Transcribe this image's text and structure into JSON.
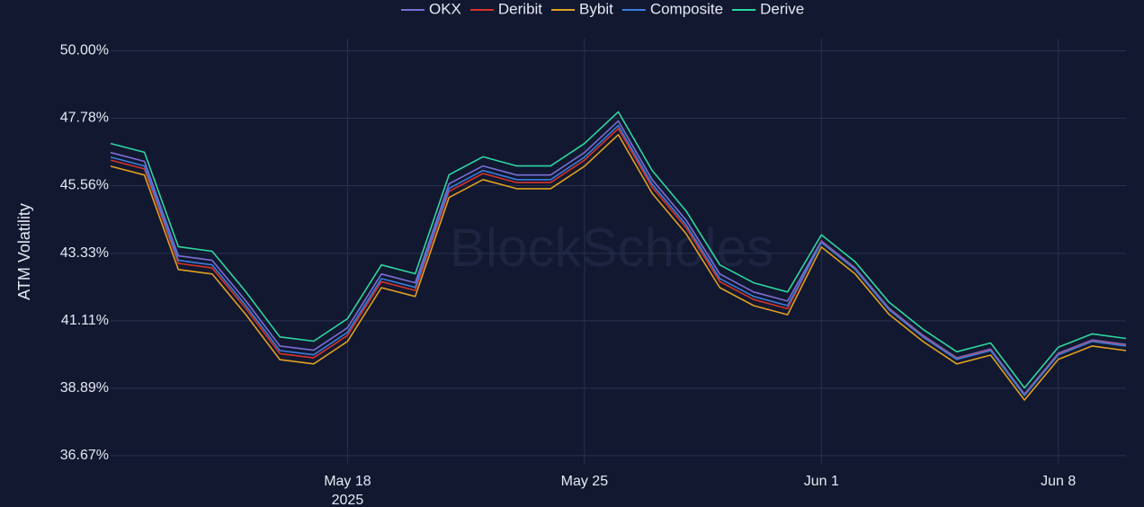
{
  "chart_data": {
    "type": "line",
    "y_label": "ATM Volatility",
    "watermark": "BlockScholes",
    "x": [
      "2025-05-11",
      "2025-05-12",
      "2025-05-13",
      "2025-05-14",
      "2025-05-15",
      "2025-05-16",
      "2025-05-17",
      "2025-05-18",
      "2025-05-19",
      "2025-05-20",
      "2025-05-21",
      "2025-05-22",
      "2025-05-23",
      "2025-05-24",
      "2025-05-25",
      "2025-05-26",
      "2025-05-27",
      "2025-05-28",
      "2025-05-29",
      "2025-05-30",
      "2025-05-31",
      "2025-06-01",
      "2025-06-02",
      "2025-06-03",
      "2025-06-04",
      "2025-06-05",
      "2025-06-06",
      "2025-06-07",
      "2025-06-08",
      "2025-06-09",
      "2025-06-10"
    ],
    "series": [
      {
        "name": "OKX",
        "color": "#7b6fd6",
        "values": [
          46.65,
          46.36,
          43.25,
          43.1,
          41.76,
          40.28,
          40.14,
          40.88,
          42.65,
          42.36,
          45.62,
          46.21,
          45.91,
          45.91,
          46.65,
          47.69,
          45.76,
          44.43,
          42.65,
          42.06,
          41.76,
          43.74,
          42.85,
          41.52,
          40.63,
          39.89,
          40.18,
          38.7,
          40.04,
          40.48,
          40.33
        ]
      },
      {
        "name": "Deribit",
        "color": "#d6342a",
        "values": [
          46.4,
          46.11,
          43.0,
          42.85,
          41.51,
          40.03,
          39.89,
          40.63,
          42.4,
          42.11,
          45.37,
          45.96,
          45.66,
          45.66,
          46.4,
          47.44,
          45.51,
          44.18,
          42.4,
          41.81,
          41.51,
          43.71,
          42.82,
          41.49,
          40.6,
          39.86,
          40.15,
          38.67,
          40.01,
          40.45,
          40.3
        ]
      },
      {
        "name": "Bybit",
        "color": "#e0a020",
        "values": [
          46.2,
          45.91,
          42.8,
          42.65,
          41.31,
          39.83,
          39.69,
          40.43,
          42.2,
          41.91,
          45.17,
          45.76,
          45.46,
          45.46,
          46.2,
          47.24,
          45.31,
          43.98,
          42.2,
          41.61,
          41.31,
          43.54,
          42.65,
          41.32,
          40.43,
          39.69,
          39.98,
          38.5,
          39.84,
          40.28,
          40.13
        ]
      },
      {
        "name": "Composite",
        "color": "#3b7ddd",
        "values": [
          46.5,
          46.21,
          43.1,
          42.95,
          41.61,
          40.13,
          39.99,
          40.73,
          42.5,
          42.21,
          45.47,
          46.06,
          45.76,
          45.76,
          46.5,
          47.54,
          45.61,
          44.28,
          42.5,
          41.91,
          41.61,
          43.69,
          42.8,
          41.47,
          40.58,
          39.84,
          40.13,
          38.65,
          39.99,
          40.43,
          40.28
        ]
      },
      {
        "name": "Derive",
        "color": "#2fd6a0",
        "values": [
          46.95,
          46.66,
          43.55,
          43.4,
          42.06,
          40.58,
          40.44,
          41.18,
          42.95,
          42.66,
          45.92,
          46.51,
          46.21,
          46.21,
          46.95,
          47.99,
          46.06,
          44.73,
          42.95,
          42.36,
          42.06,
          43.94,
          43.05,
          41.72,
          40.83,
          40.09,
          40.38,
          38.9,
          40.24,
          40.68,
          40.53
        ]
      }
    ],
    "xlim": [
      "2025-05-11",
      "2025-06-10"
    ],
    "xticks": [
      {
        "value": "2025-05-18",
        "label": "May 18"
      },
      {
        "value": "2025-05-25",
        "label": "May 25"
      },
      {
        "value": "2025-06-01",
        "label": "Jun 1"
      },
      {
        "value": "2025-06-08",
        "label": "Jun 8"
      }
    ],
    "x_tick_sublabel": "2025",
    "ylim": [
      36.4,
      50.4
    ],
    "yticks": [
      {
        "value": 36.67,
        "label": "36.67%"
      },
      {
        "value": 38.89,
        "label": "38.89%"
      },
      {
        "value": 41.11,
        "label": "41.11%"
      },
      {
        "value": 43.33,
        "label": "43.33%"
      },
      {
        "value": 45.56,
        "label": "45.56%"
      },
      {
        "value": 47.78,
        "label": "47.78%"
      },
      {
        "value": 50.0,
        "label": "50.00%"
      }
    ],
    "grid": true,
    "legend": "top"
  }
}
